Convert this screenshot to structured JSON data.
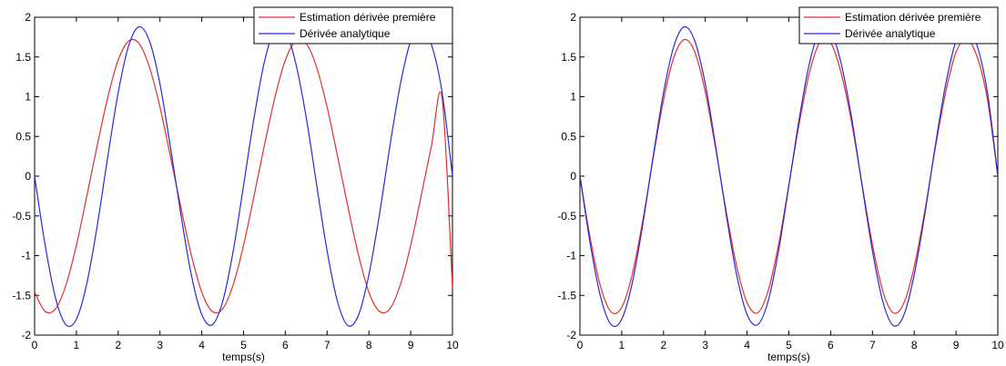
{
  "chart_data": [
    {
      "type": "line",
      "xlabel": "temps(s)",
      "ylabel": "",
      "xlim": [
        0,
        10
      ],
      "ylim": [
        -2,
        2
      ],
      "xticks": [
        0,
        1,
        2,
        3,
        4,
        5,
        6,
        7,
        8,
        9,
        10
      ],
      "yticks": [
        -2,
        -1.5,
        -1,
        -0.5,
        0,
        0.5,
        1,
        1.5,
        2
      ],
      "legend_position": "top-right",
      "series": [
        {
          "name": "Estimation dérivée première",
          "color": "#e0302e",
          "x": [
            0,
            0.25,
            0.5,
            0.75,
            1,
            1.25,
            1.5,
            1.75,
            2,
            2.25,
            2.5,
            2.75,
            3,
            3.25,
            3.5,
            3.75,
            4,
            4.25,
            4.5,
            4.75,
            5,
            5.25,
            5.5,
            5.75,
            6,
            6.25,
            6.5,
            6.75,
            7,
            7.25,
            7.5,
            7.75,
            8,
            8.25,
            8.5,
            8.75,
            9,
            9.25,
            9.5,
            9.75,
            10
          ],
          "values": [
            -1.46,
            -1.7,
            -1.67,
            -1.37,
            -0.87,
            -0.25,
            0.39,
            0.99,
            1.46,
            1.7,
            1.67,
            1.37,
            0.87,
            0.25,
            -0.39,
            -0.99,
            -1.46,
            -1.7,
            -1.67,
            -1.37,
            -0.87,
            -0.25,
            0.39,
            0.99,
            1.46,
            1.7,
            1.67,
            1.37,
            0.87,
            0.25,
            -0.39,
            -0.99,
            -1.46,
            -1.7,
            -1.67,
            -1.37,
            -0.87,
            -0.25,
            0.39,
            0.99,
            -1.4
          ]
        },
        {
          "name": "Dérivée analytique",
          "color": "#2a2ad6",
          "x": [
            0,
            0.25,
            0.5,
            0.75,
            1,
            1.25,
            1.5,
            1.75,
            2,
            2.25,
            2.5,
            2.75,
            3,
            3.25,
            3.5,
            3.75,
            4,
            4.25,
            4.5,
            4.75,
            5,
            5.25,
            5.5,
            5.75,
            6,
            6.25,
            6.5,
            6.75,
            7,
            7.25,
            7.5,
            7.75,
            8,
            8.25,
            8.5,
            8.75,
            9,
            9.25,
            9.5,
            9.75,
            10
          ],
          "values": [
            0,
            -0.86,
            -1.53,
            -1.87,
            -1.8,
            -1.35,
            -0.62,
            0.24,
            1.05,
            1.64,
            1.88,
            1.7,
            1.16,
            0.37,
            -0.48,
            -1.24,
            -1.74,
            -1.87,
            -1.58,
            -0.95,
            -0.12,
            0.73,
            1.44,
            1.84,
            1.83,
            1.42,
            0.74,
            -0.11,
            -0.94,
            -1.58,
            -1.88,
            -1.75,
            -1.24,
            -0.49,
            0.37,
            1.15,
            1.7,
            1.88,
            1.65,
            1.06,
            0
          ]
        }
      ]
    },
    {
      "type": "line",
      "xlabel": "temps(s)",
      "ylabel": "",
      "xlim": [
        0,
        10
      ],
      "ylim": [
        -2,
        2
      ],
      "xticks": [
        0,
        1,
        2,
        3,
        4,
        5,
        6,
        7,
        8,
        9,
        10
      ],
      "yticks": [
        -2,
        -1.5,
        -1,
        -0.5,
        0,
        0.5,
        1,
        1.5,
        2
      ],
      "legend_position": "top-right",
      "series": [
        {
          "name": "Estimation dérivée première",
          "color": "#e0302e",
          "x": [
            0,
            0.25,
            0.5,
            0.75,
            1,
            1.25,
            1.5,
            1.75,
            2,
            2.25,
            2.5,
            2.75,
            3,
            3.25,
            3.5,
            3.75,
            4,
            4.25,
            4.5,
            4.75,
            5,
            5.25,
            5.5,
            5.75,
            6,
            6.25,
            6.5,
            6.75,
            7,
            7.25,
            7.5,
            7.75,
            8,
            8.25,
            8.5,
            8.75,
            9,
            9.25,
            9.5,
            9.75,
            10
          ],
          "values": [
            0,
            -0.79,
            -1.4,
            -1.71,
            -1.65,
            -1.24,
            -0.57,
            0.22,
            0.96,
            1.5,
            1.72,
            1.56,
            1.06,
            0.34,
            -0.44,
            -1.13,
            -1.59,
            -1.72,
            -1.45,
            -0.87,
            -0.11,
            0.67,
            1.32,
            1.69,
            1.68,
            1.3,
            0.68,
            -0.1,
            -0.86,
            -1.45,
            -1.72,
            -1.6,
            -1.14,
            -0.45,
            0.34,
            1.05,
            1.56,
            1.72,
            1.51,
            0.97,
            0
          ]
        },
        {
          "name": "Dérivée analytique",
          "color": "#2a2ad6",
          "x": [
            0,
            0.25,
            0.5,
            0.75,
            1,
            1.25,
            1.5,
            1.75,
            2,
            2.25,
            2.5,
            2.75,
            3,
            3.25,
            3.5,
            3.75,
            4,
            4.25,
            4.5,
            4.75,
            5,
            5.25,
            5.5,
            5.75,
            6,
            6.25,
            6.5,
            6.75,
            7,
            7.25,
            7.5,
            7.75,
            8,
            8.25,
            8.5,
            8.75,
            9,
            9.25,
            9.5,
            9.75,
            10
          ],
          "values": [
            0,
            -0.86,
            -1.53,
            -1.87,
            -1.8,
            -1.35,
            -0.62,
            0.24,
            1.05,
            1.64,
            1.88,
            1.7,
            1.16,
            0.37,
            -0.48,
            -1.24,
            -1.74,
            -1.87,
            -1.58,
            -0.95,
            -0.12,
            0.73,
            1.44,
            1.84,
            1.83,
            1.42,
            0.74,
            -0.11,
            -0.94,
            -1.58,
            -1.88,
            -1.75,
            -1.24,
            -0.49,
            0.37,
            1.15,
            1.7,
            1.88,
            1.65,
            1.06,
            0
          ]
        }
      ]
    }
  ]
}
